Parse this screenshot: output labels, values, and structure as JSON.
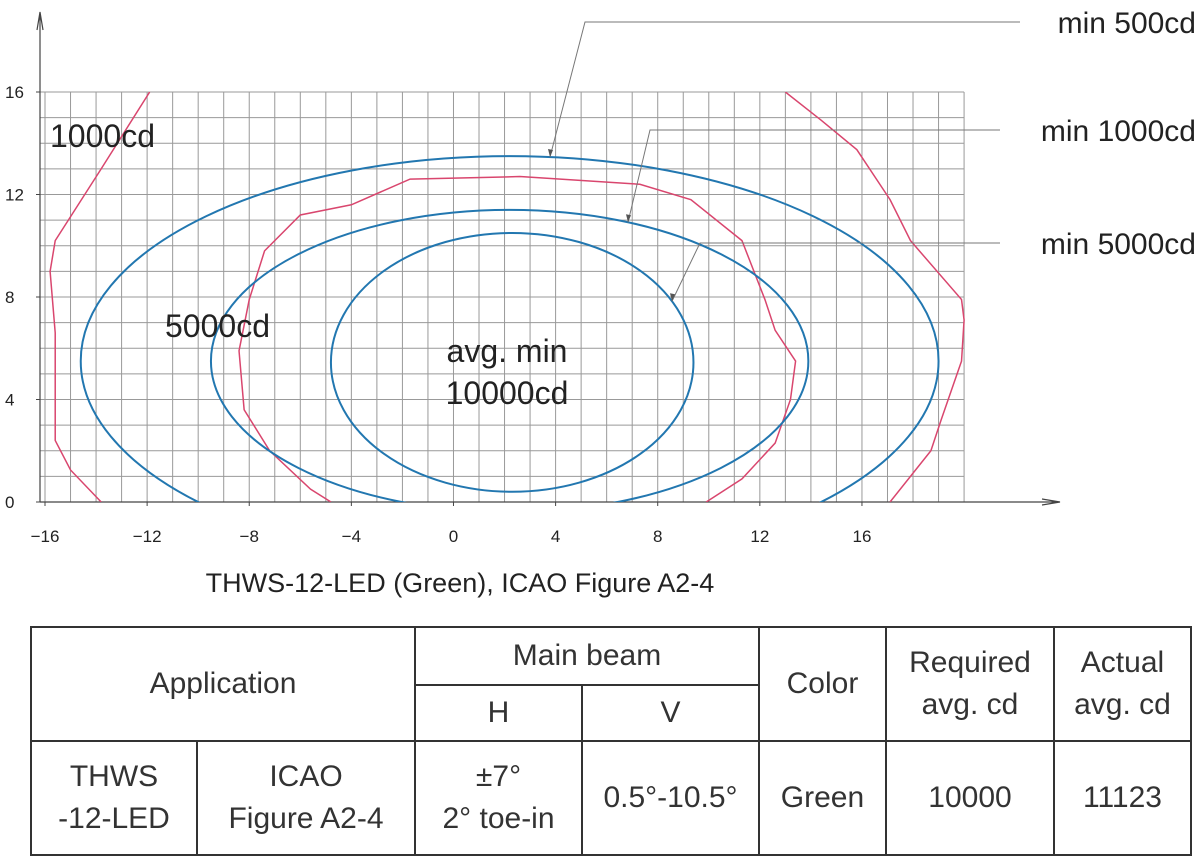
{
  "chart_data": {
    "type": "isocandela",
    "caption": "THWS-12-LED (Green), ICAO Figure A2-4",
    "xlim": [
      -16,
      20
    ],
    "ylim": [
      0,
      16
    ],
    "xticks": [
      {
        "value": -16,
        "label": "−16"
      },
      {
        "value": -12,
        "label": "−12"
      },
      {
        "value": -8,
        "label": "−8"
      },
      {
        "value": -4,
        "label": "−4"
      },
      0,
      4,
      8,
      12,
      16
    ],
    "yticks": [
      0,
      4,
      8,
      12,
      16
    ],
    "grid": true,
    "grid_step": 1,
    "ellipses": [
      {
        "label": "min 500cd",
        "cx": 2.2,
        "cy": 5.5,
        "rx": 16.8,
        "ry": 8,
        "color": "#2277b0"
      },
      {
        "label": "min 1000cd",
        "cx": 2.2,
        "cy": 5.5,
        "rx": 11.7,
        "ry": 5.9,
        "color": "#2277b0"
      },
      {
        "label": "min 5000cd",
        "cx": 2.3,
        "cy": 5.45,
        "rx": 7.1,
        "ry": 5.05,
        "color": "#2277b0"
      }
    ],
    "curves": {
      "color": "#d9466e",
      "x": [
        -11.9,
        -13.8,
        -15.6,
        -15.8,
        -15.6,
        -15.6,
        -15.0,
        -13.8,
        null,
        13.0,
        14.4,
        15.8,
        17.1,
        17.9,
        19.9,
        20.0,
        19.9,
        19.1,
        18.7,
        17.1,
        null,
        -4.8,
        -5.6,
        -7.2,
        -8.2,
        -8.4,
        -8.0,
        -7.4,
        -6.0,
        -4.0,
        -1.7,
        2.6,
        7.3,
        9.3,
        11.3,
        12.2,
        12.6,
        13.4,
        13.2,
        12.6,
        11.3,
        9.9
      ],
      "y": [
        16,
        13,
        10.2,
        9,
        6.6,
        2.4,
        1.25,
        0,
        null,
        16,
        14.9,
        13.75,
        11.8,
        10.2,
        7.9,
        7.1,
        5.5,
        3.2,
        2.0,
        0,
        null,
        0,
        0.5,
        2.0,
        3.6,
        5.9,
        7.9,
        9.8,
        11.2,
        11.6,
        12.6,
        12.7,
        12.4,
        11.8,
        10.2,
        7.9,
        6.7,
        5.5,
        4.0,
        2.3,
        0.9,
        0
      ]
    },
    "annotations": [
      "1000cd",
      "5000cd"
    ],
    "center_label": [
      "avg. min",
      "10000cd"
    ]
  },
  "table": {
    "header": {
      "application": "Application",
      "main_beam": "Main beam",
      "h": "H",
      "v": "V",
      "color": "Color",
      "required": [
        "Required",
        "avg. cd"
      ],
      "actual": [
        "Actual",
        "avg. cd"
      ]
    },
    "rows": [
      [
        [
          "THWS",
          "-12-LED"
        ],
        [
          "ICAO",
          "Figure A2-4"
        ],
        [
          "±7°",
          "2° toe-in"
        ],
        "0.5°-10.5°",
        "Green",
        10000,
        11123
      ]
    ]
  }
}
